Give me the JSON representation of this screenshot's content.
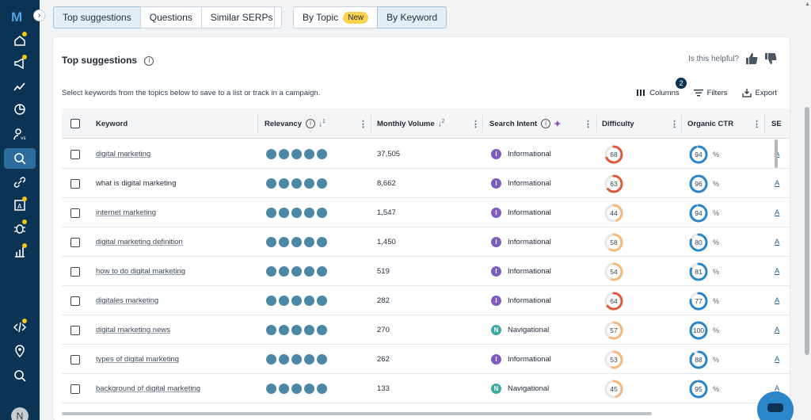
{
  "nav": {
    "logo": "M",
    "avatar_initial": "N",
    "items": [
      {
        "icon": "home-icon",
        "dot": true
      },
      {
        "icon": "megaphone-icon",
        "dot": true
      },
      {
        "icon": "trend-icon",
        "dot": false
      },
      {
        "icon": "pie-chart-icon",
        "dot": false
      },
      {
        "icon": "user-vs-icon",
        "dot": false
      },
      {
        "icon": "keyword-search-icon",
        "dot": false,
        "active": true
      },
      {
        "icon": "link-icon",
        "dot": false
      },
      {
        "icon": "content-icon",
        "dot": true
      },
      {
        "icon": "bug-icon",
        "dot": true
      },
      {
        "icon": "report-icon",
        "dot": true
      },
      {
        "icon": "code-icon",
        "dot": true
      },
      {
        "icon": "location-icon",
        "dot": false
      },
      {
        "icon": "search-icon",
        "dot": false
      }
    ]
  },
  "tabs": {
    "group1": [
      "Top suggestions",
      "Questions",
      "Similar SERPs"
    ],
    "selected": "Top suggestions",
    "group2_topic": "By Topic",
    "new_badge": "New",
    "group2_keyword": "By Keyword"
  },
  "panel": {
    "title": "Top suggestions",
    "helpful_text": "Is this helpful?",
    "subtext": "Select keywords from the topics below to save to a list or track in a campaign.",
    "columns_label": "Columns",
    "columns_count": "2",
    "filters_label": "Filters",
    "export_label": "Export"
  },
  "table": {
    "headers": {
      "keyword": "Keyword",
      "relevancy": "Relevancy",
      "relevancy_sort": "1",
      "volume": "Monthly Volume",
      "volume_sort": "2",
      "intent": "Search Intent",
      "difficulty": "Difficulty",
      "ctr": "Organic CTR",
      "se": "SE"
    },
    "rows": [
      {
        "keyword": "digital marketing",
        "link": true,
        "relevancy": 5,
        "volume": "37,505",
        "intent": "Informational",
        "intent_code": "I",
        "difficulty": "68",
        "ctr": "94",
        "se": "A"
      },
      {
        "keyword": "what is digital marketing",
        "link": false,
        "relevancy": 5,
        "volume": "8,662",
        "intent": "Informational",
        "intent_code": "I",
        "difficulty": "63",
        "ctr": "96",
        "se": "A"
      },
      {
        "keyword": "internet marketing",
        "link": true,
        "relevancy": 5,
        "volume": "1,547",
        "intent": "Informational",
        "intent_code": "I",
        "difficulty": "44",
        "ctr": "94",
        "se": "A"
      },
      {
        "keyword": "digital marketing definition",
        "link": true,
        "relevancy": 5,
        "volume": "1,450",
        "intent": "Informational",
        "intent_code": "I",
        "difficulty": "58",
        "ctr": "80",
        "se": "A"
      },
      {
        "keyword": "how to do digital marketing",
        "link": true,
        "relevancy": 5,
        "volume": "519",
        "intent": "Informational",
        "intent_code": "I",
        "difficulty": "54",
        "ctr": "81",
        "se": "A"
      },
      {
        "keyword": "digitales marketing",
        "link": true,
        "relevancy": 5,
        "volume": "282",
        "intent": "Informational",
        "intent_code": "I",
        "difficulty": "64",
        "ctr": "77",
        "se": "A"
      },
      {
        "keyword": "digital marketing news",
        "link": true,
        "relevancy": 5,
        "volume": "270",
        "intent": "Navigational",
        "intent_code": "N",
        "difficulty": "57",
        "ctr": "100",
        "se": "A"
      },
      {
        "keyword": "types of digital marketing",
        "link": true,
        "relevancy": 5,
        "volume": "262",
        "intent": "Informational",
        "intent_code": "I",
        "difficulty": "53",
        "ctr": "88",
        "se": "A"
      },
      {
        "keyword": "background of digital marketing",
        "link": true,
        "relevancy": 5,
        "volume": "133",
        "intent": "Navigational",
        "intent_code": "N",
        "difficulty": "45",
        "ctr": "95",
        "se": "A"
      }
    ],
    "pct_suffix": "%"
  },
  "colors": {
    "informational": "#7c5cbf",
    "navigational": "#3aa99f",
    "difficulty_high": "#e05a3a",
    "difficulty_mid": "#f5b77a",
    "ctr": "#2b86c9",
    "relevancy_dot": "#4a88a6"
  }
}
